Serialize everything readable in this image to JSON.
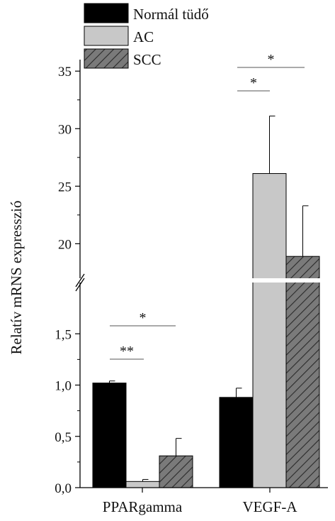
{
  "chart_data": {
    "type": "bar",
    "ylabel": "Relatív mRNS expresszió",
    "categories": [
      "PPARgamma",
      "VEGF-A"
    ],
    "series": [
      {
        "name": "Normál tüdő",
        "values": [
          1.02,
          0.88
        ],
        "errors": [
          0.02,
          0.09
        ],
        "fill": "#000000",
        "pattern": "solid"
      },
      {
        "name": "AC",
        "values": [
          0.06,
          26.1
        ],
        "errors": [
          0.02,
          5.0
        ],
        "fill": "#c8c8c8",
        "pattern": "solid"
      },
      {
        "name": "SCC",
        "values": [
          0.31,
          18.9
        ],
        "errors": [
          0.17,
          4.4
        ],
        "fill": "#7a7a7a",
        "pattern": "diagonal-hatch"
      }
    ],
    "y_axis_lower": {
      "range": [
        0,
        2.0
      ],
      "ticks": [
        "0,0",
        "0,5",
        "1,0",
        "1,5"
      ],
      "tick_values": [
        0,
        0.5,
        1.0,
        1.5
      ]
    },
    "y_axis_upper": {
      "range": [
        17,
        36
      ],
      "ticks": [
        "20",
        "25",
        "30",
        "35"
      ],
      "tick_values": [
        20,
        25,
        30,
        35
      ]
    },
    "axis_break": true,
    "legend_placement": "top-left",
    "grid": false,
    "significance": [
      {
        "category": "PPARgamma",
        "between": [
          "Normál tüdő",
          "AC"
        ],
        "label": "**"
      },
      {
        "category": "PPARgamma",
        "between": [
          "Normál tüdő",
          "SCC"
        ],
        "label": "*"
      },
      {
        "category": "VEGF-A",
        "between": [
          "Normál tüdő",
          "AC"
        ],
        "label": "*"
      },
      {
        "category": "VEGF-A",
        "between": [
          "Normál tüdő",
          "SCC"
        ],
        "label": "*"
      }
    ]
  }
}
